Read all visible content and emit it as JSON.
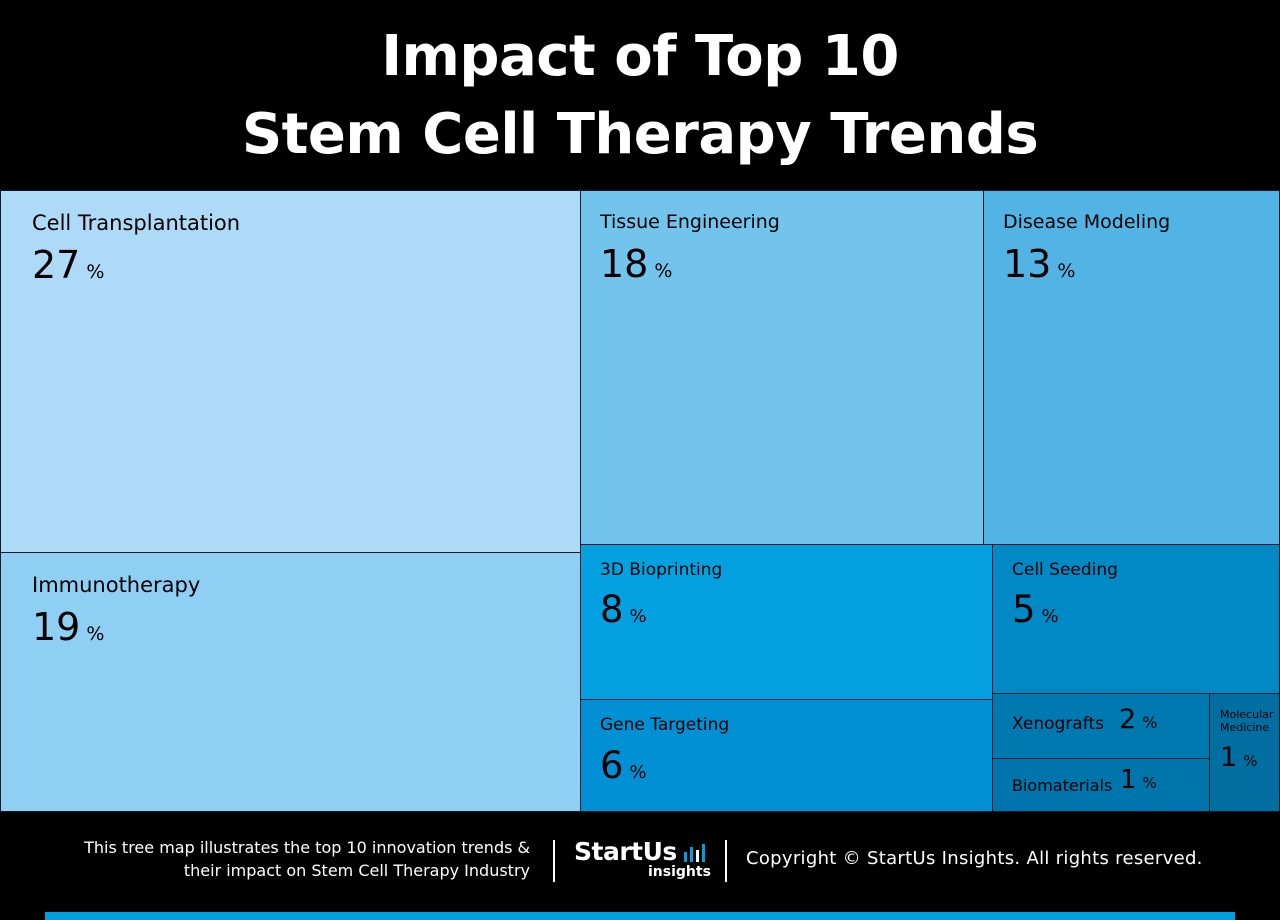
{
  "title_lines": [
    "Impact of Top 10",
    "Stem Cell Therapy Trends"
  ],
  "chart_data": {
    "type": "treemap",
    "title": "Impact of Top 10 Stem Cell Therapy Trends",
    "unit": "%",
    "items": [
      {
        "label": "Cell Transplantation",
        "value": 27,
        "color": "#addaf6"
      },
      {
        "label": "Immunotherapy",
        "value": 19,
        "color": "#8fcff3"
      },
      {
        "label": "Tissue Engineering",
        "value": 18,
        "color": "#73c4ed"
      },
      {
        "label": "Disease Modeling",
        "value": 13,
        "color": "#52b3e5"
      },
      {
        "label": "3D Bioprinting",
        "value": 8,
        "color": "#03a1df"
      },
      {
        "label": "Gene Targeting",
        "value": 6,
        "color": "#0090d3"
      },
      {
        "label": "Cell Seeding",
        "value": 5,
        "color": "#0089c5"
      },
      {
        "label": "Xenografts",
        "value": 2,
        "color": "#0079b1"
      },
      {
        "label": "Biomaterials",
        "value": 1,
        "color": "#0075ab"
      },
      {
        "label": "Molecular Medicine",
        "value": 1,
        "color": "#006ea1"
      }
    ]
  },
  "footer": {
    "note_line1": "This tree map illustrates the top 10 innovation trends &",
    "note_line2": "their impact on Stem Cell Therapy Industry",
    "logo_text": "StartUs",
    "logo_sub": "insights",
    "copyright": "Copyright © StartUs Insights. All rights reserved.",
    "accent_color": "#00a0df"
  }
}
